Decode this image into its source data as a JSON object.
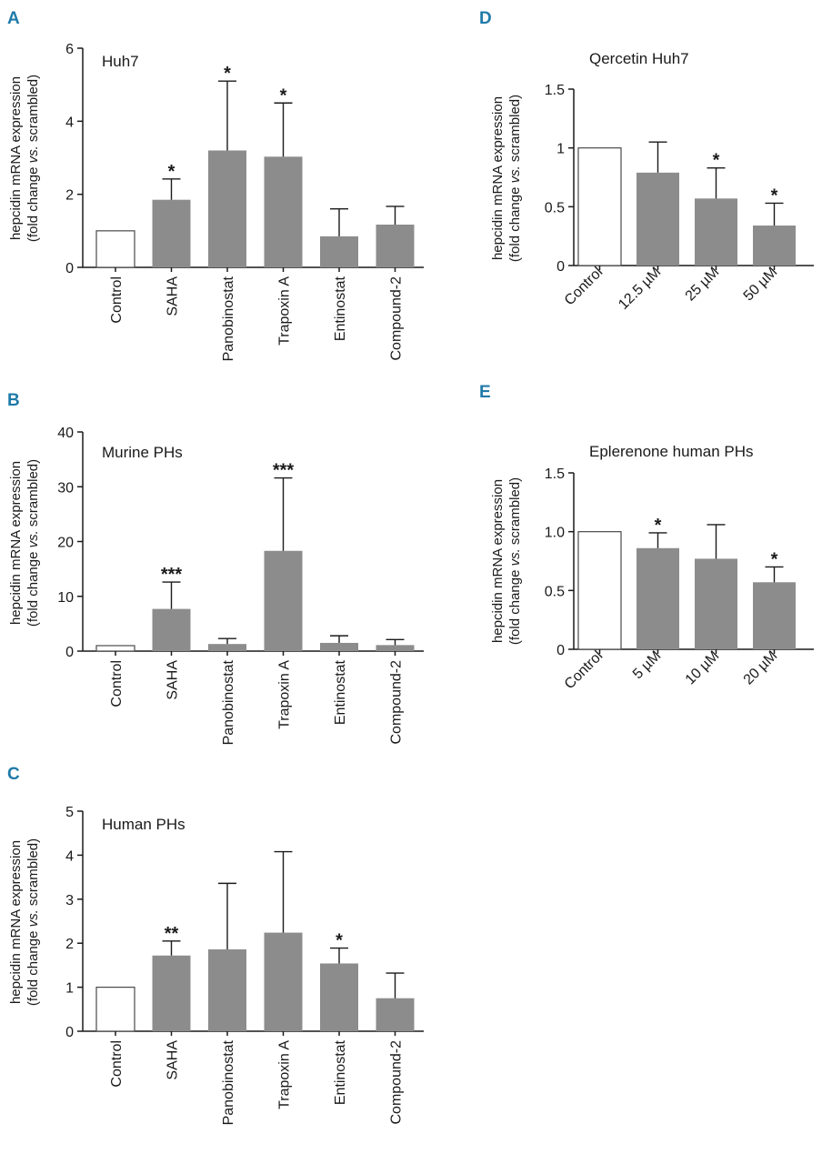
{
  "colors": {
    "bar": "#8c8c8c",
    "control_fill": "#ffffff",
    "bar_stroke": "#4a4a4a",
    "panel_letter": "#1f7aa8"
  },
  "y_axis_label": {
    "line1": "hepcidin mRNA expression",
    "line2_prefix": "(fold change ",
    "line2_italic": "vs.",
    "line2_suffix": " scrambled)"
  },
  "chart_data": [
    {
      "panel": "A",
      "type": "bar",
      "title": "Huh7",
      "categories": [
        "Control",
        "SAHA",
        "Panobinostat",
        "Trapoxin A",
        "Entinostat",
        "Compound-2"
      ],
      "values": [
        1.0,
        1.85,
        3.2,
        3.03,
        0.85,
        1.17
      ],
      "errors": [
        0,
        0.57,
        1.9,
        1.47,
        0.75,
        0.5
      ],
      "significance": [
        "",
        "*",
        "*",
        "*",
        "",
        ""
      ],
      "ylim": [
        0,
        6
      ],
      "yticks": [
        "0",
        "2",
        "4",
        "6"
      ],
      "ytick_values": [
        0,
        2,
        4,
        6
      ]
    },
    {
      "panel": "B",
      "type": "bar",
      "title": "Murine PHs",
      "categories": [
        "Control",
        "SAHA",
        "Panobinostat",
        "Trapoxin A",
        "Entinostat",
        "Compound-2"
      ],
      "values": [
        1.0,
        7.7,
        1.3,
        18.3,
        1.5,
        1.1
      ],
      "errors": [
        0,
        4.9,
        1.0,
        13.3,
        1.3,
        1.0
      ],
      "significance": [
        "",
        "***",
        "",
        "***",
        "",
        ""
      ],
      "ylim": [
        0,
        40
      ],
      "yticks": [
        "0",
        "10",
        "20",
        "30",
        "40"
      ],
      "ytick_values": [
        0,
        10,
        20,
        30,
        40
      ]
    },
    {
      "panel": "C",
      "type": "bar",
      "title": "Human PHs",
      "categories": [
        "Control",
        "SAHA",
        "Panobinostat",
        "Trapoxin A",
        "Entinostat",
        "Compound-2"
      ],
      "values": [
        1.0,
        1.72,
        1.86,
        2.24,
        1.54,
        0.75
      ],
      "errors": [
        0,
        0.33,
        1.5,
        1.84,
        0.35,
        0.57
      ],
      "significance": [
        "",
        "**",
        "",
        "",
        "*",
        ""
      ],
      "ylim": [
        0,
        5
      ],
      "yticks": [
        "0",
        "1",
        "2",
        "3",
        "4",
        "5"
      ],
      "ytick_values": [
        0,
        1,
        2,
        3,
        4,
        5
      ]
    },
    {
      "panel": "D",
      "type": "bar",
      "title": "Qercetin Huh7",
      "categories": [
        "Control",
        "12.5 µM",
        "25 µM",
        "50 µM"
      ],
      "values": [
        1.0,
        0.79,
        0.57,
        0.34
      ],
      "errors": [
        0,
        0.26,
        0.26,
        0.19
      ],
      "significance": [
        "",
        "",
        "*",
        "*"
      ],
      "ylim": [
        0,
        1.5
      ],
      "yticks": [
        "0",
        "0.5",
        "1",
        "1.5"
      ],
      "ytick_values": [
        0,
        0.5,
        1,
        1.5
      ]
    },
    {
      "panel": "E",
      "type": "bar",
      "title": "Eplerenone human PHs",
      "categories": [
        "Control",
        "5 µM",
        "10 µM",
        "20 µM"
      ],
      "values": [
        1.0,
        0.86,
        0.77,
        0.57
      ],
      "errors": [
        0,
        0.13,
        0.29,
        0.13
      ],
      "significance": [
        "",
        "*",
        "",
        "*"
      ],
      "ylim": [
        0,
        1.5
      ],
      "yticks": [
        "0",
        "0.5",
        "1.0",
        "1.5"
      ],
      "ytick_values": [
        0,
        0.5,
        1.0,
        1.5
      ]
    }
  ]
}
